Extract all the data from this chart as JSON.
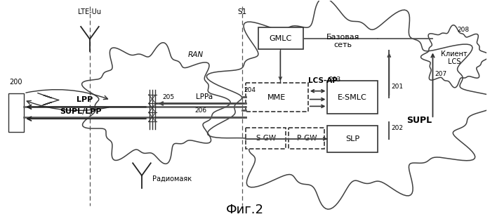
{
  "title": "Фиг.2",
  "bg_color": "#ffffff",
  "labels": {
    "lte_uu": "LTE-Uu",
    "s1": "S1",
    "ran": "RAN",
    "lpp": "LPP",
    "supl_lpp": "SUPL/LPP",
    "lppa": "LPPa",
    "lcs_ap": "LCS-AP",
    "supl": "SUPL",
    "base_net": "Базовая\nсеть",
    "radio": "Радиомаяк",
    "gmlc": "GMLC",
    "mme": "MME",
    "esmlc": "E-SMLC",
    "slp": "SLP",
    "sgw": "S-GW",
    "pgw": "P-GW",
    "lcs_client": "Клиент\nLCS",
    "n200": "200",
    "n201": "201",
    "n202": "202",
    "n203": "203",
    "n204": "204",
    "n205": "205",
    "n206": "206",
    "n207": "207",
    "n208": "208"
  }
}
